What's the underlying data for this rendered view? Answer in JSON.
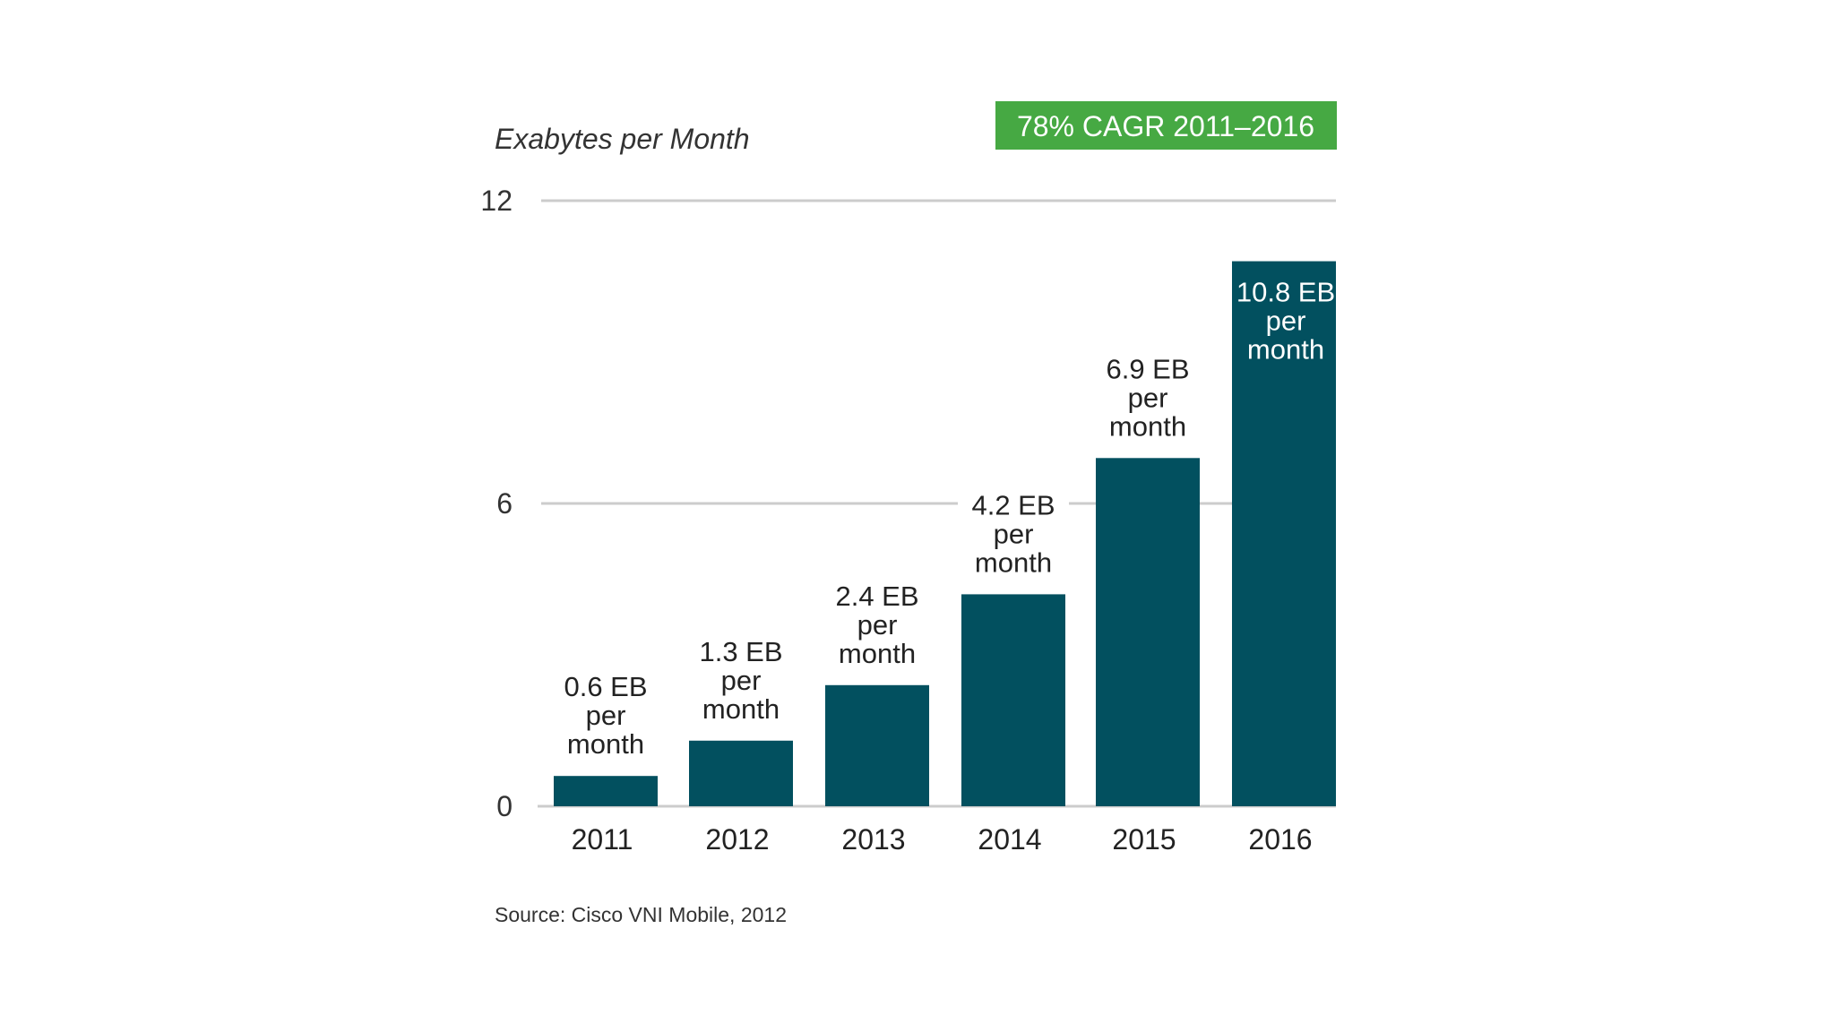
{
  "chart_data": {
    "type": "bar",
    "ylabel": "Exabytes per Month",
    "badge": "78% CAGR 2011–2016",
    "source": "Source: Cisco VNI Mobile, 2012",
    "categories": [
      "2011",
      "2012",
      "2013",
      "2014",
      "2015",
      "2016"
    ],
    "values": [
      0.6,
      1.3,
      2.4,
      4.2,
      6.9,
      10.8
    ],
    "data_labels": [
      [
        "0.6 EB",
        "per",
        "month"
      ],
      [
        "1.3 EB",
        "per",
        "month"
      ],
      [
        "2.4 EB",
        "per",
        "month"
      ],
      [
        "4.2 EB",
        "per",
        "month"
      ],
      [
        "6.9 EB",
        "per",
        "month"
      ],
      [
        "10.8 EB",
        "per",
        "month"
      ]
    ],
    "yticks": [
      "0",
      "6",
      "12"
    ],
    "ylim": [
      0,
      12
    ],
    "grid": true,
    "colors": {
      "bar": "#02505f",
      "badge": "#46a943",
      "label_outside": "#222222",
      "label_inside": "#ffffff"
    }
  }
}
